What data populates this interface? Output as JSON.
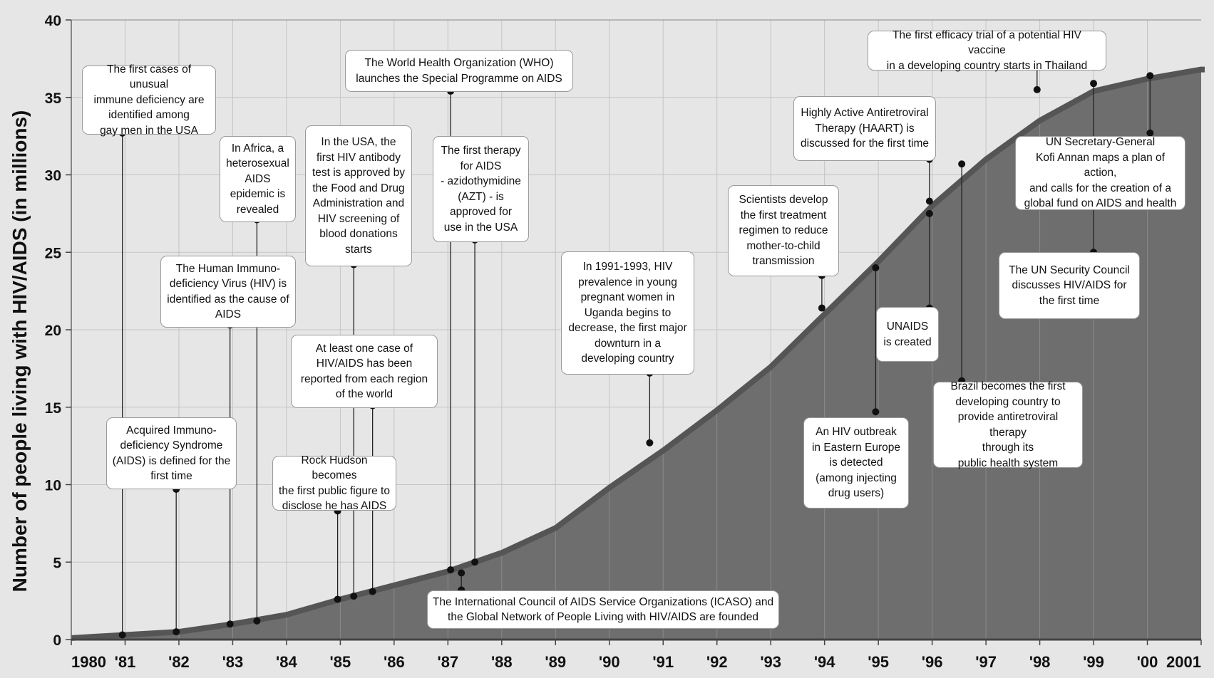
{
  "chart_data": {
    "type": "area",
    "ylabel": "Number of people living with HIV/AIDS (in millions)",
    "xlabel": "",
    "ylim": [
      0,
      40
    ],
    "yticks": [
      0,
      5,
      10,
      15,
      20,
      25,
      30,
      35,
      40
    ],
    "xlim": [
      1980,
      2001
    ],
    "xtick_labels": [
      "1980",
      "'81",
      "'82",
      "'83",
      "'84",
      "'85",
      "'86",
      "'87",
      "'88",
      "'89",
      "'90",
      "'91",
      "'92",
      "'93",
      "'94",
      "'95",
      "'96",
      "'97",
      "'98",
      "'99",
      "'00",
      "2001"
    ],
    "grid": true,
    "series": [
      {
        "x": [
          1980,
          1981,
          1982,
          1983,
          1984,
          1985,
          1986,
          1987,
          1988,
          1989,
          1990,
          1991,
          1992,
          1993,
          1994,
          1995,
          1996,
          1997,
          1998,
          1999,
          2000,
          2001
        ],
        "values": [
          0.1,
          0.3,
          0.5,
          1.0,
          1.6,
          2.6,
          3.5,
          4.4,
          5.6,
          7.2,
          9.8,
          12.2,
          14.8,
          17.6,
          21.0,
          24.4,
          28.0,
          31.0,
          33.5,
          35.4,
          36.2,
          36.8
        ]
      }
    ],
    "annotations": [
      {
        "text": "The first cases of unusual\nimmune deficiency are\nidentified among\ngay men in the USA",
        "x": 1980.95,
        "y_curve": 0.3,
        "y_label": 32.7
      },
      {
        "text": "Acquired Immuno-\ndeficiency Syndrome\n(AIDS) is defined for the\nfirst time",
        "x": 1981.95,
        "y_curve": 0.5,
        "y_label": 9.7
      },
      {
        "text": "The Human Immuno-\ndeficiency Virus (HIV) is\nidentified as the cause of\nAIDS",
        "x": 1982.95,
        "y_curve": 1.0,
        "y_label": 20.3
      },
      {
        "text": "In Africa, a\nheterosexual\nAIDS\nepidemic is\nrevealed",
        "x": 1983.45,
        "y_curve": 1.2,
        "y_label": 27.1
      },
      {
        "text": "Rock Hudson becomes\nthe first public figure to\ndisclose he has AIDS",
        "x": 1984.95,
        "y_curve": 2.6,
        "y_label": 8.3
      },
      {
        "text": "In the USA, the\nfirst HIV antibody\ntest is approved by\nthe Food and Drug\nAdministration and\nHIV screening of\nblood donations\nstarts",
        "x": 1985.25,
        "y_curve": 2.8,
        "y_label": 24.2
      },
      {
        "text": "At least one case of\nHIV/AIDS has been\nreported from each region\nof the world",
        "x": 1985.6,
        "y_curve": 3.1,
        "y_label": 15.1
      },
      {
        "text": "The World Health Organization (WHO)\nlaunches the Special Programme on AIDS",
        "x": 1987.05,
        "y_curve": 4.5,
        "y_label": 35.4
      },
      {
        "text": "The first therapy\nfor AIDS\n- azidothymidine\n(AZT) -  is\napproved for\nuse in the USA",
        "x": 1987.5,
        "y_curve": 5.0,
        "y_label": 25.8
      },
      {
        "text": "The International Council of AIDS Service Organizations (ICASO) and\nthe Global Network of People Living with HIV/AIDS are founded",
        "x": 1987.25,
        "y_curve": 4.3,
        "y_label": 3.2
      },
      {
        "text": "In 1991-1993, HIV\nprevalence in young\npregnant women in\nUganda begins to\ndecrease, the first major\ndownturn in a\ndeveloping country",
        "x": 1990.75,
        "y_curve": 12.7,
        "y_label": 17.2
      },
      {
        "text": "Scientists develop\nthe first treatment\nregimen to reduce\nmother-to-child\ntransmission",
        "x": 1993.95,
        "y_curve": 21.4,
        "y_label": 23.5
      },
      {
        "text": "An HIV outbreak\nin Eastern Europe\nis detected\n(among injecting\ndrug users)",
        "x": 1994.95,
        "y_curve": 24.0,
        "y_label": 14.7
      },
      {
        "text": "Highly Active Antiretroviral\nTherapy (HAART) is\ndiscussed for the first time",
        "x": 1995.95,
        "y_curve": 28.3,
        "y_label": 31.0
      },
      {
        "text": "UNAIDS\nis created",
        "x": 1995.95,
        "y_curve": 27.5,
        "y_label": 21.4
      },
      {
        "text": "Brazil becomes the first\ndeveloping country to\nprovide antiretroviral therapy\nthrough its\npublic health system",
        "x": 1996.55,
        "y_curve": 30.7,
        "y_label": 16.7
      },
      {
        "text": "The first efficacy trial of a potential HIV vaccine\nin a developing country starts in Thailand",
        "x": 1997.95,
        "y_curve": 35.5,
        "y_label": 37.0
      },
      {
        "text": "The UN Security Council\ndiscusses HIV/AIDS for\nthe first time",
        "x": 1999.0,
        "y_curve": 35.9,
        "y_label": 25.0
      },
      {
        "text": "UN Secretary-General\nKofi Annan maps a plan of action,\nand calls for the creation of a\nglobal fund on AIDS and health",
        "x": 2000.05,
        "y_curve": 36.4,
        "y_label": 32.7
      }
    ]
  }
}
